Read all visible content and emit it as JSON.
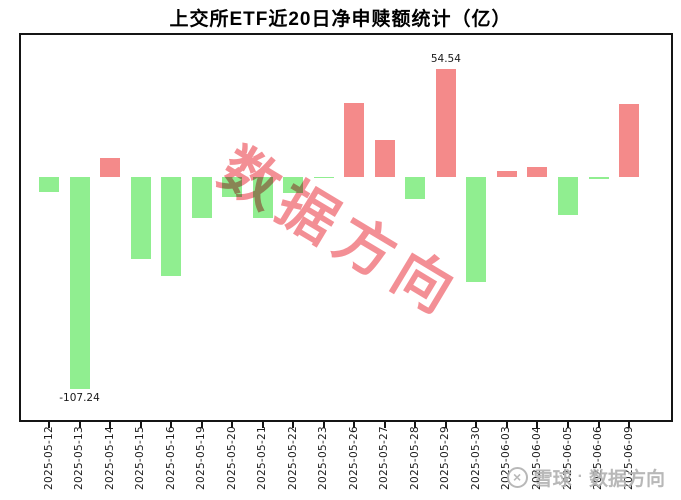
{
  "page": {
    "background": "#ffffff"
  },
  "chart_data": {
    "type": "bar",
    "title": "上交所ETF近20日净申赎额统计（亿）",
    "xlabel": "",
    "ylabel": "",
    "grid": false,
    "legend": null,
    "ylim": [
      -123,
      72
    ],
    "categories": [
      "2025-05-12",
      "2025-05-13",
      "2025-05-14",
      "2025-05-15",
      "2025-05-16",
      "2025-05-19",
      "2025-05-20",
      "2025-05-21",
      "2025-05-22",
      "2025-05-23",
      "2025-05-26",
      "2025-05-27",
      "2025-05-28",
      "2025-05-29",
      "2025-05-30",
      "2025-06-03",
      "2025-06-04",
      "2025-06-05",
      "2025-06-06",
      "2025-06-09"
    ],
    "values": [
      -7.5,
      -107.24,
      9.7,
      -41.4,
      -49.9,
      -20.5,
      -10.2,
      -20.8,
      -7.9,
      -0.5,
      37.4,
      18.6,
      -11.0,
      54.54,
      -53.3,
      2.9,
      5.3,
      -19.3,
      -0.7,
      37.2
    ],
    "annotations": [
      {
        "index": 1,
        "category": "2025-05-13",
        "text": "-107.24",
        "position": "below"
      },
      {
        "index": 13,
        "category": "2025-05-29",
        "text": "54.54",
        "position": "above"
      }
    ],
    "colors": {
      "positive": "#f48a8a",
      "negative": "#90ee90",
      "axis": "#151515",
      "tick_label": "#1a1a1a"
    }
  },
  "watermarks": {
    "diagonal": {
      "text": "数据方向",
      "color": "#f0737a"
    },
    "footer": {
      "logo": "snowball-circle-icon",
      "logo_glyph": "×",
      "brand": "雪球",
      "separator": "·",
      "label": "数据方向",
      "color": "#b2b2b2"
    }
  }
}
